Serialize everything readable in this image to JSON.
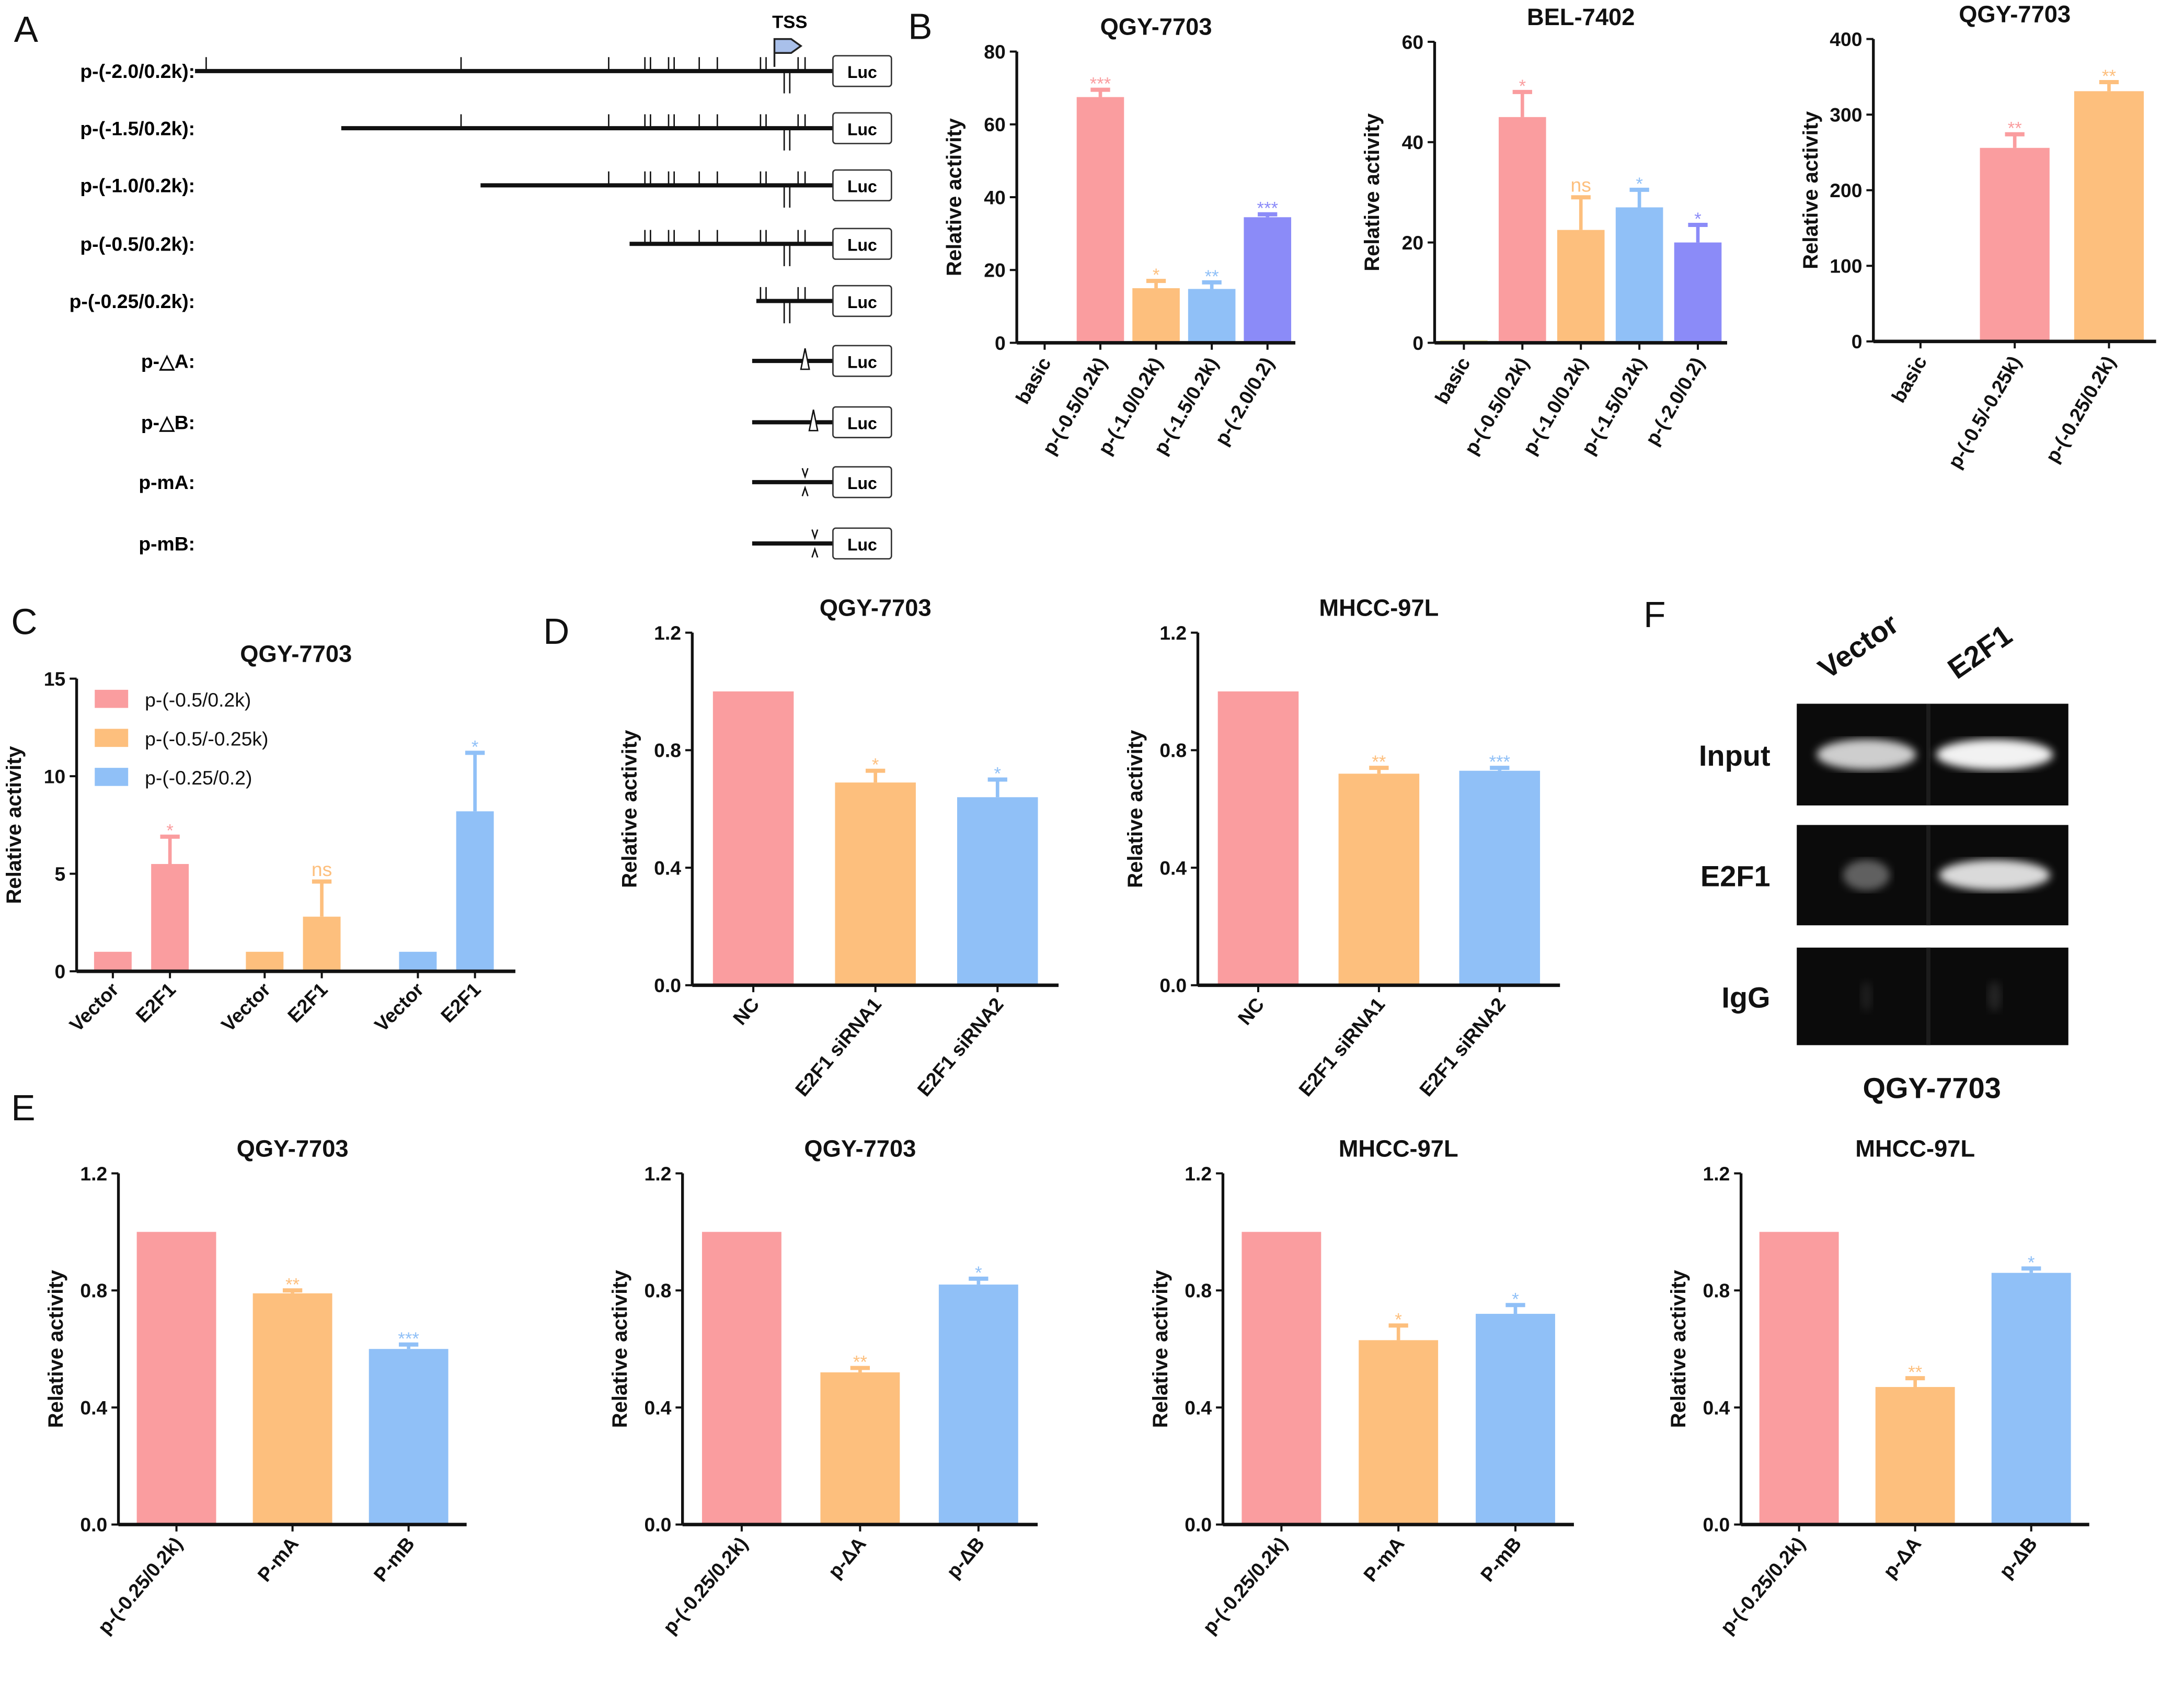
{
  "panels": {
    "A": "A",
    "B": "B",
    "C": "C",
    "D": "D",
    "E": "E",
    "F": "F"
  },
  "diagram": {
    "tss_label": "TSS",
    "luc_label": "Luc",
    "constructs": [
      "p-(-2.0/0.2k):",
      "p-(-1.5/0.2k):",
      "p-(-1.0/0.2k):",
      "p-(-0.5/0.2k):",
      "p-(-0.25/0.2k):",
      "p-△A:",
      "p-△B:",
      "p-mA:",
      "p-mB:"
    ],
    "tss_color": "#a9c0ea"
  },
  "colors": {
    "pink": "#fa9d9f",
    "orange": "#fdbf7d",
    "blue": "#90c0f7",
    "purple": "#8b8bf8"
  },
  "chart_data": [
    {
      "id": "B1",
      "type": "bar",
      "title": "QGY-7703",
      "ylabel": "Relative activity",
      "ylim": [
        0,
        80
      ],
      "yticks": [
        0,
        20,
        40,
        60,
        80
      ],
      "categories": [
        "basic",
        "p-(-0.5/0.2k)",
        "p-(-1.0/0.2k)",
        "p-(-1.5/0.2k)",
        "p-(-2.0/0.2)"
      ],
      "values": [
        0,
        67.5,
        15,
        14.8,
        34.5
      ],
      "errors": [
        0,
        2,
        2,
        1.8,
        0.8
      ],
      "significance": [
        "",
        "***",
        "*",
        "**",
        "***"
      ],
      "colors": [
        "#fa9d9f",
        "#fa9d9f",
        "#fdbf7d",
        "#90c0f7",
        "#8b8bf8"
      ]
    },
    {
      "id": "B2",
      "type": "bar",
      "title": "BEL-7402",
      "ylabel": "Relative activity",
      "ylim": [
        0,
        60
      ],
      "yticks": [
        0,
        20,
        40,
        60
      ],
      "categories": [
        "basic",
        "p-(-0.5/0.2k)",
        "p-(-1.0/0.2k)",
        "p-(-1.5/0.2k)",
        "p-(-2.0/0.2)"
      ],
      "values": [
        0.5,
        45,
        22.5,
        27,
        20
      ],
      "errors": [
        0,
        5,
        6.5,
        3.5,
        3.5
      ],
      "significance": [
        "",
        "*",
        "ns",
        "*",
        "*"
      ],
      "colors": [
        "#e8e2a0",
        "#fa9d9f",
        "#fdbf7d",
        "#90c0f7",
        "#8b8bf8"
      ]
    },
    {
      "id": "B3",
      "type": "bar",
      "title": "QGY-7703",
      "ylabel": "Relative activity",
      "ylim": [
        0,
        400
      ],
      "yticks": [
        0,
        100,
        200,
        300,
        400
      ],
      "categories": [
        "basic",
        "p-(-0.5/-0.25k)",
        "p-(-0.25/0.2k)"
      ],
      "values": [
        0,
        256,
        331
      ],
      "errors": [
        0,
        18,
        12
      ],
      "significance": [
        "",
        "**",
        "**"
      ],
      "colors": [
        "#fa9d9f",
        "#fa9d9f",
        "#fdbf7d"
      ]
    },
    {
      "id": "C",
      "type": "bar",
      "title": "QGY-7703",
      "ylabel": "Relative activity",
      "ylim": [
        0,
        15
      ],
      "yticks": [
        0,
        5,
        10,
        15
      ],
      "categories": [
        "Vector",
        "E2F1",
        "Vector",
        "E2F1",
        "Vector",
        "E2F1"
      ],
      "values": [
        1,
        5.5,
        1,
        2.8,
        1,
        8.2
      ],
      "errors": [
        0,
        1.4,
        0,
        1.8,
        0,
        3
      ],
      "significance": [
        "",
        "*",
        "",
        "ns",
        "",
        "*"
      ],
      "colors": [
        "#fa9d9f",
        "#fa9d9f",
        "#fdbf7d",
        "#fdbf7d",
        "#90c0f7",
        "#90c0f7"
      ],
      "legend": {
        "position": "top-left",
        "entries": [
          {
            "name": "p-(-0.5/0.2k)",
            "color": "#fa9d9f"
          },
          {
            "name": "p-(-0.5/-0.25k)",
            "color": "#fdbf7d"
          },
          {
            "name": "p-(-0.25/0.2)",
            "color": "#90c0f7"
          }
        ]
      }
    },
    {
      "id": "D1",
      "type": "bar",
      "title": "QGY-7703",
      "ylabel": "Relative activity",
      "ylim": [
        0,
        1.2
      ],
      "yticks": [
        "0.0",
        "0.4",
        "0.8",
        "1.2"
      ],
      "categories": [
        "NC",
        "E2F1 siRNA1",
        "E2F1 siRNA2"
      ],
      "values": [
        1,
        0.69,
        0.64
      ],
      "errors": [
        0,
        0.04,
        0.06
      ],
      "significance": [
        "",
        "*",
        "*"
      ],
      "colors": [
        "#fa9d9f",
        "#fdbf7d",
        "#90c0f7"
      ]
    },
    {
      "id": "D2",
      "type": "bar",
      "title": "MHCC-97L",
      "ylabel": "Relative activity",
      "ylim": [
        0,
        1.2
      ],
      "yticks": [
        "0.0",
        "0.4",
        "0.8",
        "1.2"
      ],
      "categories": [
        "NC",
        "E2F1 siRNA1",
        "E2F1 siRNA2"
      ],
      "values": [
        1,
        0.72,
        0.73
      ],
      "errors": [
        0,
        0.02,
        0.01
      ],
      "significance": [
        "",
        "**",
        "***"
      ],
      "colors": [
        "#fa9d9f",
        "#fdbf7d",
        "#90c0f7"
      ]
    },
    {
      "id": "E1",
      "type": "bar",
      "title": "QGY-7703",
      "ylabel": "Relative activity",
      "ylim": [
        0,
        1.2
      ],
      "yticks": [
        "0.0",
        "0.4",
        "0.8",
        "1.2"
      ],
      "categories": [
        "p-(-0.25/0.2k)",
        "P-mA",
        "P-mB"
      ],
      "values": [
        1,
        0.79,
        0.6
      ],
      "errors": [
        0,
        0.01,
        0.015
      ],
      "significance": [
        "",
        "**",
        "***"
      ],
      "colors": [
        "#fa9d9f",
        "#fdbf7d",
        "#90c0f7"
      ]
    },
    {
      "id": "E2",
      "type": "bar",
      "title": "QGY-7703",
      "ylabel": "Relative activity",
      "ylim": [
        0,
        1.2
      ],
      "yticks": [
        "0.0",
        "0.4",
        "0.8",
        "1.2"
      ],
      "categories": [
        "p-(-0.25/0.2k)",
        "p-ΔA",
        "p-ΔB"
      ],
      "values": [
        1,
        0.52,
        0.82
      ],
      "errors": [
        0,
        0.015,
        0.02
      ],
      "significance": [
        "",
        "**",
        "*"
      ],
      "colors": [
        "#fa9d9f",
        "#fdbf7d",
        "#90c0f7"
      ]
    },
    {
      "id": "E3",
      "type": "bar",
      "title": "MHCC-97L",
      "ylabel": "Relative activity",
      "ylim": [
        0,
        1.2
      ],
      "yticks": [
        "0.0",
        "0.4",
        "0.8",
        "1.2"
      ],
      "categories": [
        "p-(-0.25/0.2k)",
        "P-mA",
        "P-mB"
      ],
      "values": [
        1,
        0.63,
        0.72
      ],
      "errors": [
        0,
        0.05,
        0.03
      ],
      "significance": [
        "",
        "*",
        "*"
      ],
      "colors": [
        "#fa9d9f",
        "#fdbf7d",
        "#90c0f7"
      ]
    },
    {
      "id": "E4",
      "type": "bar",
      "title": "MHCC-97L",
      "ylabel": "Relative activity",
      "ylim": [
        0,
        1.2
      ],
      "yticks": [
        "0.0",
        "0.4",
        "0.8",
        "1.2"
      ],
      "categories": [
        "p-(-0.25/0.2k)",
        "p-ΔA",
        "p-ΔB"
      ],
      "values": [
        1,
        0.47,
        0.86
      ],
      "errors": [
        0,
        0.03,
        0.015
      ],
      "significance": [
        "",
        "**",
        "*"
      ],
      "colors": [
        "#fa9d9f",
        "#fdbf7d",
        "#90c0f7"
      ]
    }
  ],
  "gel": {
    "lanes": [
      "Vector",
      "E2F1"
    ],
    "rows": [
      "Input",
      "E2F1",
      "IgG"
    ],
    "caption": "QGY-7703"
  }
}
